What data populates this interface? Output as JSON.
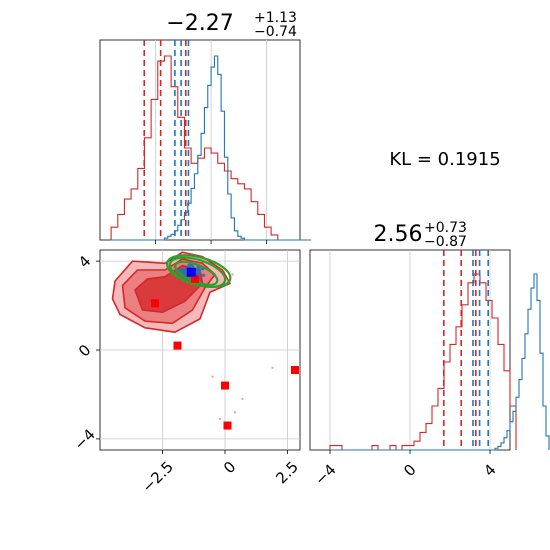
{
  "colors": {
    "posterior_red": "#d62728",
    "prior_blue": "#1f77b4",
    "ellipse_green": "#2ca02c",
    "marker_blue": "#0000ff",
    "marker_red": "#ff0000",
    "grid": "#c8c8c8"
  },
  "kl_text": "KL = 0.1915",
  "chart_data": [
    {
      "panel": "marginal-param-1",
      "type": "histogram",
      "title": {
        "main": "−2.27",
        "sup": "+1.13",
        "sub": "−0.74"
      },
      "xlim": [
        -5.0,
        4.0
      ],
      "xticks": [
        -2.5,
        0.0,
        2.5
      ],
      "grid": true,
      "series": [
        {
          "color": "red",
          "bin_edges_start": -4.5,
          "bin_width": 0.3,
          "counts": [
            0.05,
            0.1,
            0.16,
            0.2,
            0.28,
            0.4,
            0.55,
            0.7,
            0.72,
            0.6,
            0.48,
            0.36,
            0.3,
            0.32,
            0.36,
            0.34,
            0.3,
            0.27,
            0.24,
            0.22,
            0.2,
            0.15,
            0.1,
            0.05,
            0.02,
            0,
            0,
            0,
            0,
            0
          ],
          "quantile_lines": [
            -3.01,
            -2.27,
            -1.14
          ]
        },
        {
          "color": "blue",
          "bin_edges_start": -4.5,
          "bin_width": 0.15,
          "counts": [
            0,
            0,
            0,
            0,
            0,
            0,
            0,
            0,
            0,
            0,
            0,
            0,
            0,
            0,
            0,
            0,
            0.01,
            0.02,
            0.03,
            0.05,
            0.08,
            0.11,
            0.15,
            0.2,
            0.28,
            0.36,
            0.46,
            0.58,
            0.72,
            0.84,
            0.94,
            1.0,
            0.9,
            0.7,
            0.45,
            0.25,
            0.12,
            0.05,
            0.02,
            0.01,
            0,
            0,
            0,
            0,
            0,
            0,
            0,
            0,
            0,
            0,
            0,
            0,
            0,
            0,
            0,
            0,
            0,
            0,
            0,
            0
          ],
          "quantile_lines": [
            -1.63,
            -1.35,
            -1.02
          ]
        }
      ]
    },
    {
      "panel": "marginal-param-2",
      "type": "histogram",
      "title": {
        "main": "2.56",
        "sup": "+0.73",
        "sub": "−0.87"
      },
      "xlim": [
        -5.0,
        5.0
      ],
      "xticks": [
        -4,
        0,
        4
      ],
      "grid": true,
      "series": [
        {
          "color": "red",
          "bin_edges_start": -4.0,
          "bin_width": 0.3,
          "counts": [
            0.01,
            0.01,
            0,
            0,
            0,
            0,
            0,
            0.01,
            0,
            0,
            0.01,
            0,
            0.01,
            0.01,
            0.02,
            0.04,
            0.06,
            0.1,
            0.14,
            0.2,
            0.24,
            0.28,
            0.33,
            0.38,
            0.4,
            0.38,
            0.34,
            0.3,
            0.24,
            0.18,
            0.1
          ],
          "quantile_lines": [
            1.69,
            2.56,
            3.29
          ]
        },
        {
          "color": "blue",
          "bin_edges_start": -4.0,
          "bin_width": 0.15,
          "counts": [
            0,
            0,
            0,
            0,
            0,
            0,
            0,
            0,
            0,
            0,
            0,
            0,
            0,
            0,
            0,
            0,
            0,
            0,
            0,
            0,
            0,
            0,
            0,
            0,
            0,
            0,
            0,
            0,
            0,
            0,
            0,
            0,
            0,
            0,
            0,
            0,
            0,
            0,
            0,
            0,
            0,
            0,
            0,
            0,
            0,
            0,
            0,
            0,
            0,
            0,
            0,
            0,
            0,
            0,
            0,
            0.01,
            0.02,
            0.04,
            0.07,
            0.11,
            0.16,
            0.22,
            0.3,
            0.4,
            0.52,
            0.66,
            0.8,
            0.92,
            1.0,
            0.85,
            0.55,
            0.25,
            0.08
          ],
          "quantile_lines": [
            3.15,
            3.48,
            3.91
          ]
        }
      ]
    },
    {
      "panel": "joint-param-1-vs-param-2",
      "type": "scatter",
      "xlim": [
        -5.0,
        3.0
      ],
      "ylim": [
        -4.5,
        4.5
      ],
      "xticks": [
        -2.5,
        0.0,
        2.5
      ],
      "yticks": [
        -4,
        0,
        4
      ],
      "grid": true,
      "red_contours": [
        {
          "level": "outer",
          "points": [
            [
              -4.4,
              3.1
            ],
            [
              -3.7,
              4.0
            ],
            [
              -2.4,
              3.9
            ],
            [
              -1.7,
              4.4
            ],
            [
              -0.9,
              4.2
            ],
            [
              -0.1,
              3.6
            ],
            [
              0.2,
              3.0
            ],
            [
              -0.6,
              2.6
            ],
            [
              -1.0,
              1.4
            ],
            [
              -2.0,
              0.8
            ],
            [
              -3.2,
              1.0
            ],
            [
              -4.2,
              1.6
            ],
            [
              -4.5,
              2.3
            ]
          ]
        },
        {
          "level": "middle",
          "points": [
            [
              -4.1,
              2.9
            ],
            [
              -3.5,
              3.6
            ],
            [
              -2.4,
              3.6
            ],
            [
              -1.7,
              4.1
            ],
            [
              -0.9,
              3.9
            ],
            [
              -0.4,
              3.4
            ],
            [
              -0.8,
              2.8
            ],
            [
              -1.3,
              1.8
            ],
            [
              -2.1,
              1.2
            ],
            [
              -3.2,
              1.3
            ],
            [
              -4.0,
              1.9
            ]
          ]
        },
        {
          "level": "inner",
          "points": [
            [
              -3.6,
              2.7
            ],
            [
              -3.1,
              3.2
            ],
            [
              -2.4,
              3.3
            ],
            [
              -1.7,
              3.8
            ],
            [
              -1.0,
              3.6
            ],
            [
              -0.9,
              3.0
            ],
            [
              -1.6,
              2.2
            ],
            [
              -2.5,
              1.7
            ],
            [
              -3.3,
              1.8
            ]
          ]
        }
      ],
      "blue_cloud_center": [
        -1.35,
        3.5
      ],
      "green_ellipses": [
        {
          "center": [
            -1.1,
            3.5
          ],
          "rx": 1.15,
          "ry": 0.55,
          "rotation_deg": 18
        },
        {
          "center": [
            -1.15,
            3.45
          ],
          "rx": 0.9,
          "ry": 0.38,
          "rotation_deg": 22
        },
        {
          "center": [
            -1.05,
            3.55
          ],
          "rx": 1.3,
          "ry": 0.62,
          "rotation_deg": 15
        }
      ],
      "red_square_markers": [
        [
          -2.8,
          2.1
        ],
        [
          -1.9,
          0.2
        ],
        [
          -1.2,
          3.2
        ],
        [
          0.0,
          -1.6
        ],
        [
          0.1,
          -3.4
        ],
        [
          2.8,
          -0.9
        ]
      ],
      "blue_square_marker": [
        -1.35,
        3.5
      ],
      "faint_points": [
        [
          -0.5,
          -1.2
        ],
        [
          0.4,
          -2.8
        ],
        [
          1.9,
          -0.8
        ],
        [
          -0.2,
          -3.1
        ],
        [
          0.7,
          -2.2
        ],
        [
          -3.0,
          3.6
        ],
        [
          -3.6,
          2.0
        ],
        [
          0.3,
          3.4
        ]
      ]
    }
  ]
}
